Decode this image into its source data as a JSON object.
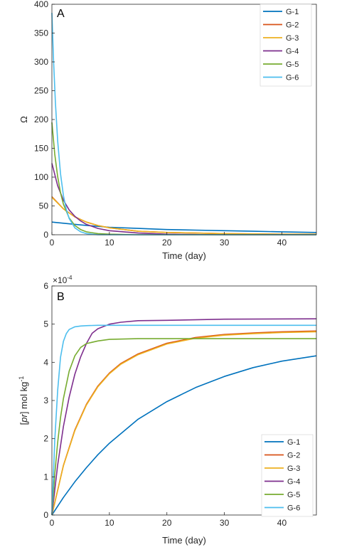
{
  "chart_data": [
    {
      "type": "line",
      "panel_label": "A",
      "xlabel": "Time (day)",
      "ylabel": "Ω",
      "xlim": [
        0,
        46
      ],
      "ylim": [
        0,
        400
      ],
      "xticks": [
        0,
        10,
        20,
        30,
        40
      ],
      "yticks": [
        0,
        50,
        100,
        150,
        200,
        250,
        300,
        350,
        400
      ],
      "legend_position": "top-right",
      "series": [
        {
          "name": "G-1",
          "color": "#0072BD",
          "x": [
            0,
            2,
            5,
            10,
            15,
            20,
            25,
            30,
            35,
            40,
            46
          ],
          "y": [
            22,
            20,
            17,
            13,
            11,
            9,
            8,
            7,
            6,
            5,
            4
          ]
        },
        {
          "name": "G-2",
          "color": "#D95319",
          "x": [
            0,
            2,
            4,
            6,
            8,
            10,
            15,
            20,
            25,
            30,
            40,
            46
          ],
          "y": [
            66,
            45,
            31,
            22,
            16,
            12,
            6,
            4,
            3,
            2,
            1,
            1
          ]
        },
        {
          "name": "G-3",
          "color": "#EDB120",
          "x": [
            0,
            2,
            4,
            6,
            8,
            10,
            15,
            20,
            25,
            30,
            40,
            46
          ],
          "y": [
            65,
            45,
            31,
            22,
            16,
            12,
            6,
            4,
            3,
            2,
            1,
            1
          ]
        },
        {
          "name": "G-4",
          "color": "#7E2F8E",
          "x": [
            0,
            1,
            2,
            3,
            4,
            5,
            6,
            8,
            10,
            15,
            20,
            30,
            46
          ],
          "y": [
            124,
            85,
            60,
            43,
            32,
            24,
            18,
            11,
            7,
            3,
            1,
            0,
            0
          ]
        },
        {
          "name": "G-5",
          "color": "#77AC30",
          "x": [
            0,
            0.5,
            1,
            1.5,
            2,
            3,
            4,
            5,
            6,
            8,
            10,
            15,
            46
          ],
          "y": [
            195,
            140,
            101,
            73,
            53,
            29,
            16,
            9,
            5,
            2,
            1,
            0,
            0
          ]
        },
        {
          "name": "G-6",
          "color": "#4DBEEE",
          "x": [
            0,
            0.3,
            0.6,
            1,
            1.5,
            2,
            2.5,
            3,
            4,
            5,
            6,
            8,
            46
          ],
          "y": [
            385,
            300,
            230,
            163,
            106,
            68,
            44,
            28,
            12,
            5,
            2,
            0,
            0
          ]
        }
      ]
    },
    {
      "type": "line",
      "panel_label": "B",
      "xlabel": "Time (day)",
      "ylabel_parts": [
        "[",
        "pr",
        "] mol kg",
        "-1"
      ],
      "exponent_parts": [
        "×10",
        "-4"
      ],
      "xlim": [
        0,
        46
      ],
      "ylim": [
        0,
        6
      ],
      "xticks": [
        0,
        10,
        20,
        30,
        40
      ],
      "yticks": [
        0,
        1,
        2,
        3,
        4,
        5,
        6
      ],
      "legend_position": "bottom-right",
      "series": [
        {
          "name": "G-1",
          "color": "#0072BD",
          "x": [
            0,
            2,
            4,
            6,
            8,
            10,
            15,
            20,
            25,
            30,
            35,
            40,
            46
          ],
          "y": [
            0,
            0.46,
            0.87,
            1.24,
            1.58,
            1.88,
            2.51,
            2.97,
            3.34,
            3.63,
            3.86,
            4.03,
            4.17
          ]
        },
        {
          "name": "G-2",
          "color": "#D95319",
          "x": [
            0,
            2,
            4,
            6,
            8,
            10,
            12,
            15,
            20,
            25,
            30,
            35,
            40,
            46
          ],
          "y": [
            0,
            1.3,
            2.23,
            2.9,
            3.38,
            3.72,
            3.97,
            4.22,
            4.5,
            4.65,
            4.73,
            4.77,
            4.8,
            4.82
          ]
        },
        {
          "name": "G-3",
          "color": "#EDB120",
          "x": [
            0,
            2,
            4,
            6,
            8,
            10,
            12,
            15,
            20,
            25,
            30,
            35,
            40,
            46
          ],
          "y": [
            0,
            1.29,
            2.21,
            2.88,
            3.36,
            3.7,
            3.95,
            4.2,
            4.48,
            4.63,
            4.71,
            4.75,
            4.78,
            4.8
          ]
        },
        {
          "name": "G-4",
          "color": "#7E2F8E",
          "x": [
            0,
            1,
            2,
            3,
            4,
            5,
            6,
            7,
            8,
            10,
            12,
            15,
            20,
            30,
            46
          ],
          "y": [
            0,
            1.31,
            2.32,
            3.09,
            3.69,
            4.14,
            4.49,
            4.76,
            4.88,
            5.0,
            5.05,
            5.09,
            5.1,
            5.13,
            5.14
          ]
        },
        {
          "name": "G-5",
          "color": "#77AC30",
          "x": [
            0,
            0.5,
            1,
            1.5,
            2,
            3,
            4,
            5,
            6,
            8,
            10,
            15,
            20,
            30,
            46
          ],
          "y": [
            0,
            1.06,
            1.9,
            2.55,
            3.05,
            3.77,
            4.17,
            4.39,
            4.49,
            4.56,
            4.6,
            4.62,
            4.62,
            4.62,
            4.62
          ]
        },
        {
          "name": "G-6",
          "color": "#4DBEEE",
          "x": [
            0,
            0.5,
            1,
            1.5,
            2,
            2.5,
            3,
            4,
            5,
            6,
            8,
            10,
            20,
            46
          ],
          "y": [
            0,
            1.95,
            3.26,
            4.13,
            4.55,
            4.75,
            4.86,
            4.93,
            4.95,
            4.96,
            4.97,
            4.97,
            4.97,
            4.97
          ]
        }
      ]
    }
  ]
}
